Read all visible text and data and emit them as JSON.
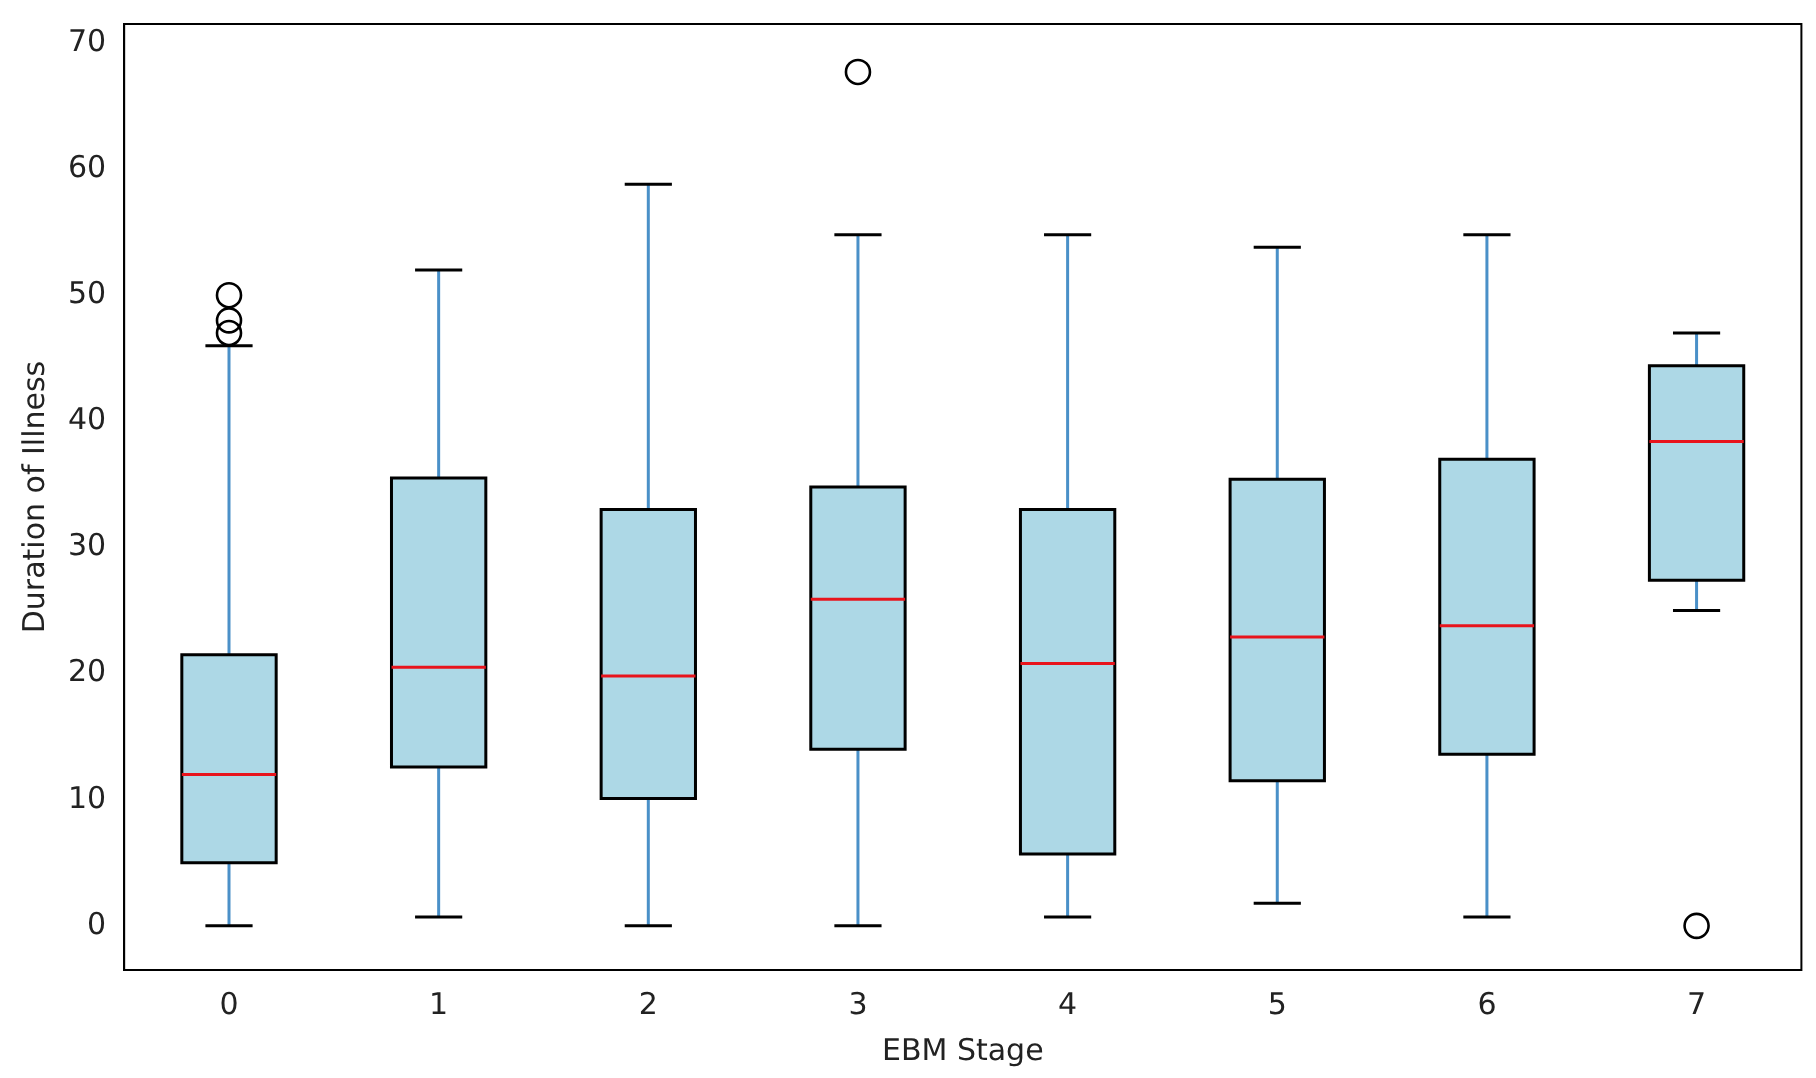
{
  "chart_data": {
    "type": "box",
    "xlabel": "EBM Stage",
    "ylabel": "Duration of Illness",
    "categories": [
      "0",
      "1",
      "2",
      "3",
      "4",
      "5",
      "6",
      "7"
    ],
    "color": "#add8e6",
    "boxes": [
      {
        "low": 0,
        "q1": 5,
        "median": 12,
        "q3": 21.5,
        "high": 46,
        "outliers": [
          47,
          48,
          50
        ]
      },
      {
        "low": 0.7,
        "q1": 12.6,
        "median": 20.5,
        "q3": 35.5,
        "high": 52
      },
      {
        "low": 0,
        "q1": 10.1,
        "median": 19.8,
        "q3": 33,
        "high": 58.8
      },
      {
        "low": 0,
        "q1": 14,
        "median": 25.9,
        "q3": 34.8,
        "high": 54.8,
        "outliers": [
          67.7
        ]
      },
      {
        "low": 0.7,
        "q1": 5.7,
        "median": 20.8,
        "q3": 33,
        "high": 54.8
      },
      {
        "low": 1.8,
        "q1": 11.5,
        "median": 22.9,
        "q3": 35.4,
        "high": 53.8
      },
      {
        "low": 0.7,
        "q1": 13.6,
        "median": 23.8,
        "q3": 37,
        "high": 54.8
      },
      {
        "low": 25,
        "q1": 27.4,
        "median": 38.4,
        "q3": 44.4,
        "high": 47,
        "outliers": [
          0
        ]
      }
    ],
    "ylim": [
      -3.5,
      71.5
    ],
    "yticks": [
      0,
      10,
      20,
      30,
      40,
      50,
      60,
      70
    ],
    "grid": false
  }
}
